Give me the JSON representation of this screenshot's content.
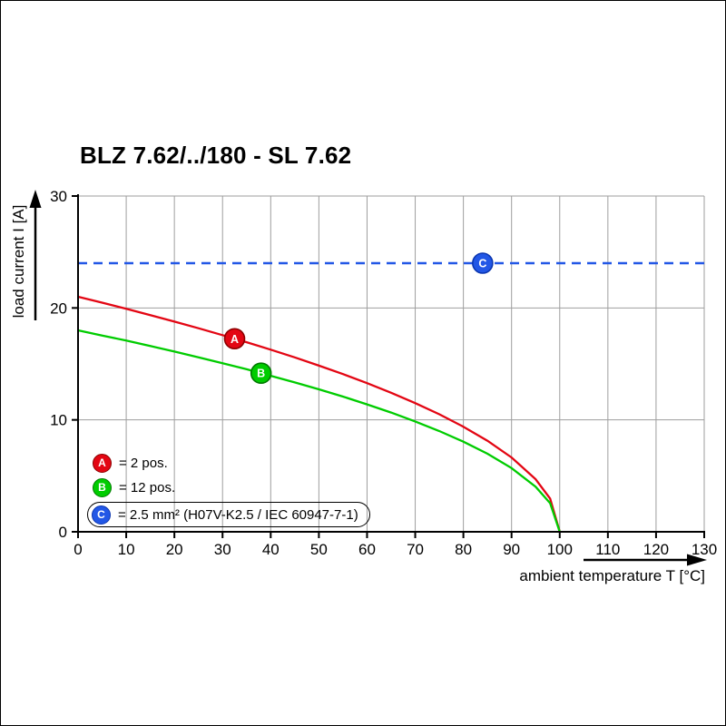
{
  "title": "BLZ 7.62/../180 - SL 7.62",
  "chart_data": {
    "type": "line",
    "title": "BLZ 7.62/../180 - SL 7.62",
    "xlabel": "ambient temperature T [°C]",
    "ylabel": "load current I [A]",
    "xlim": [
      0,
      130
    ],
    "ylim": [
      0,
      30
    ],
    "x_ticks": [
      0,
      10,
      20,
      30,
      40,
      50,
      60,
      70,
      80,
      90,
      100,
      110,
      120,
      130
    ],
    "y_ticks": [
      0,
      10,
      20,
      30
    ],
    "grid": true,
    "grid_color": "#9e9e9e",
    "legend_position": "lower-left",
    "series": [
      {
        "name": "A",
        "legend_label": "= 2 pos.",
        "color": "#e30613",
        "marker_ring": "#8b0000",
        "style": "solid",
        "marker_at": {
          "x": 32.5,
          "y": 17.25
        },
        "x": [
          0,
          5,
          10,
          15,
          20,
          25,
          30,
          35,
          40,
          45,
          50,
          55,
          60,
          65,
          70,
          75,
          80,
          85,
          90,
          95,
          98,
          100
        ],
        "values": [
          21.0,
          20.47,
          19.92,
          19.36,
          18.78,
          18.19,
          17.57,
          16.94,
          16.27,
          15.58,
          14.85,
          14.09,
          13.28,
          12.42,
          11.5,
          10.5,
          9.39,
          8.13,
          6.64,
          4.7,
          2.97,
          0
        ]
      },
      {
        "name": "B",
        "legend_label": "= 12 pos.",
        "color": "#00cc00",
        "marker_ring": "#007a00",
        "style": "solid",
        "marker_at": {
          "x": 38,
          "y": 14.17
        },
        "x": [
          0,
          5,
          10,
          15,
          20,
          25,
          30,
          35,
          40,
          45,
          50,
          55,
          60,
          65,
          70,
          75,
          80,
          85,
          90,
          95,
          98,
          100
        ],
        "values": [
          18.0,
          17.54,
          17.08,
          16.6,
          16.1,
          15.59,
          15.06,
          14.52,
          13.94,
          13.35,
          12.73,
          12.08,
          11.38,
          10.65,
          9.86,
          9.0,
          8.05,
          6.97,
          5.69,
          4.02,
          2.55,
          0
        ]
      },
      {
        "name": "C",
        "legend_label": "= 2.5 mm² (H07V-K2.5 / IEC 60947-7-1)",
        "color": "#2257e6",
        "marker_ring": "#0b36b0",
        "style": "dashed",
        "boxed_legend": true,
        "marker_at": {
          "x": 84,
          "y": 24
        },
        "x": [
          0,
          130
        ],
        "values": [
          24,
          24
        ]
      }
    ]
  }
}
